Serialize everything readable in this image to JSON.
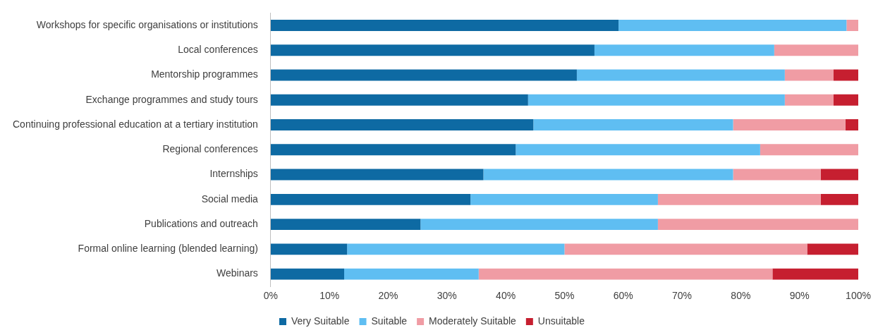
{
  "chart_data": {
    "type": "bar",
    "orientation": "horizontal",
    "stacked": true,
    "categories": [
      "Workshops for specific organisations or institutions",
      "Local conferences",
      "Mentorship programmes",
      "Exchange programmes and study tours",
      "Continuing professional education at a tertiary institution",
      "Regional conferences",
      "Internships",
      "Social media",
      "Publications and outreach",
      "Formal online learning (blended learning)",
      "Webinars"
    ],
    "series": [
      {
        "name": "Very Suitable",
        "color": "#0e6aa3",
        "values": [
          59.2,
          55.1,
          52.1,
          43.8,
          44.7,
          41.7,
          36.2,
          34.0,
          25.5,
          13.0,
          12.5
        ]
      },
      {
        "name": "Suitable",
        "color": "#5fbef2",
        "values": [
          38.8,
          30.6,
          35.4,
          43.7,
          34.0,
          41.6,
          42.5,
          31.9,
          40.4,
          37.0,
          22.9
        ]
      },
      {
        "name": "Moderately Suitable",
        "color": "#f09ca4",
        "values": [
          2.0,
          14.3,
          8.3,
          8.3,
          19.1,
          16.7,
          14.9,
          27.7,
          34.1,
          41.3,
          50.0
        ]
      },
      {
        "name": "Unsuitable",
        "color": "#c61f30",
        "values": [
          0,
          0,
          4.2,
          4.2,
          2.2,
          0,
          6.4,
          6.4,
          0,
          8.7,
          14.6
        ]
      }
    ],
    "xlim": [
      0,
      100
    ],
    "xticks": [
      {
        "value": 0,
        "label": "0%"
      },
      {
        "value": 10,
        "label": "10%"
      },
      {
        "value": 20,
        "label": "20%"
      },
      {
        "value": 30,
        "label": "30%"
      },
      {
        "value": 40,
        "label": "40%"
      },
      {
        "value": 50,
        "label": "50%"
      },
      {
        "value": 60,
        "label": "60%"
      },
      {
        "value": 70,
        "label": "70%"
      },
      {
        "value": 80,
        "label": "80%"
      },
      {
        "value": 90,
        "label": "90%"
      },
      {
        "value": 100,
        "label": "100%"
      }
    ],
    "legend": "bottom"
  }
}
